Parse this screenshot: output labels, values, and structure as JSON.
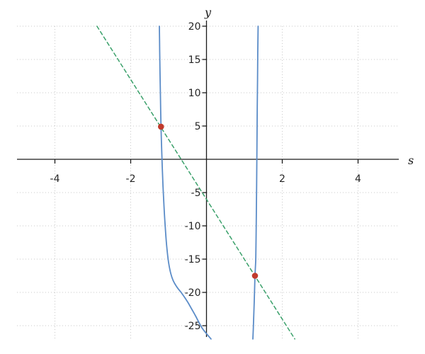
{
  "figure": {
    "background": "#ffffff"
  },
  "chart_data": {
    "type": "line",
    "title": "",
    "xlabel": "s",
    "ylabel": "y",
    "xlim": [
      -5.05,
      5.05
    ],
    "ylim": [
      -27,
      20
    ],
    "grid": "dotted",
    "legend": "none",
    "x_ticks": [
      {
        "value": -4,
        "label": "-4"
      },
      {
        "value": -2,
        "label": "-2"
      },
      {
        "value": 2,
        "label": "2"
      },
      {
        "value": 4,
        "label": "4"
      }
    ],
    "y_ticks": [
      {
        "value": 20,
        "label": "20"
      },
      {
        "value": 15,
        "label": "15"
      },
      {
        "value": 10,
        "label": "10"
      },
      {
        "value": 5,
        "label": "5"
      },
      {
        "value": -5,
        "label": "-5"
      },
      {
        "value": -10,
        "label": "-10"
      },
      {
        "value": -15,
        "label": "-15"
      },
      {
        "value": -20,
        "label": "-20"
      },
      {
        "value": -25,
        "label": "-25"
      }
    ],
    "colors": {
      "curve": "#5b8cc8",
      "dashed_line": "#3aa06a",
      "points": "#c13a2c",
      "axis": "#1a1a1a",
      "grid": "#c9c9c9",
      "tick_label": "#262626"
    },
    "series": [
      {
        "name": "curve-branch-left",
        "type": "line",
        "style": "solid",
        "color_key": "curve",
        "points": [
          [
            -1.243,
            20
          ],
          [
            -1.235,
            16.5
          ],
          [
            -1.226,
            13
          ],
          [
            -1.215,
            9.5
          ],
          [
            -1.2,
            4.9
          ],
          [
            -1.185,
            2
          ],
          [
            -1.168,
            -1
          ],
          [
            -1.148,
            -4
          ],
          [
            -1.122,
            -7
          ],
          [
            -1.09,
            -10
          ],
          [
            -1.05,
            -13
          ],
          [
            -1.0,
            -15.5
          ],
          [
            -0.94,
            -17.2
          ],
          [
            -0.88,
            -18.2
          ],
          [
            -0.78,
            -19.2
          ],
          [
            -0.67,
            -20.0
          ],
          [
            -0.57,
            -20.8
          ],
          [
            -0.48,
            -21.6
          ],
          [
            -0.39,
            -22.5
          ],
          [
            -0.3,
            -23.4
          ],
          [
            -0.21,
            -24.4
          ],
          [
            -0.11,
            -25.4
          ],
          [
            0.0,
            -26.2
          ],
          [
            0.12,
            -27.0
          ]
        ]
      },
      {
        "name": "curve-branch-right",
        "type": "line",
        "style": "solid",
        "color_key": "curve",
        "points": [
          [
            1.362,
            20
          ],
          [
            1.354,
            16
          ],
          [
            1.347,
            12
          ],
          [
            1.341,
            8
          ],
          [
            1.335,
            4
          ],
          [
            1.329,
            0
          ],
          [
            1.323,
            -4
          ],
          [
            1.316,
            -8
          ],
          [
            1.308,
            -12
          ],
          [
            1.3,
            -15
          ],
          [
            1.28,
            -17.5
          ],
          [
            1.268,
            -20
          ],
          [
            1.25,
            -23
          ],
          [
            1.235,
            -25.5
          ],
          [
            1.225,
            -27.0
          ]
        ]
      },
      {
        "name": "dashed-line",
        "type": "line",
        "style": "dashed",
        "color_key": "dashed_line",
        "points": [
          [
            -2.89,
            20
          ],
          [
            2.33,
            -27.0
          ]
        ]
      },
      {
        "name": "intersection-points",
        "type": "scatter",
        "color_key": "points",
        "points": [
          [
            -1.2,
            4.9
          ],
          [
            1.28,
            -17.5
          ]
        ]
      }
    ]
  }
}
